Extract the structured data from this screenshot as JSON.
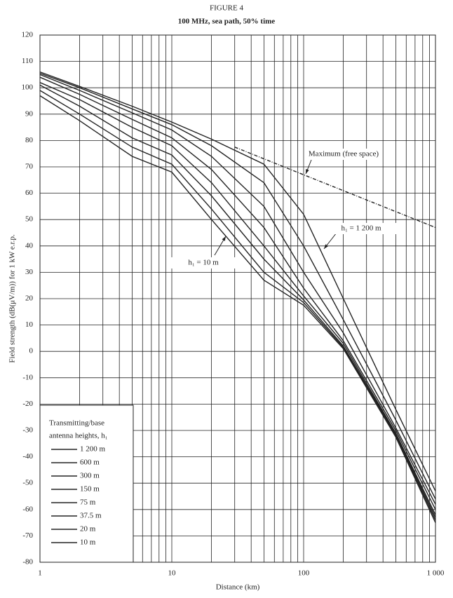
{
  "chart_data": {
    "type": "line",
    "title": "FIGURE 4",
    "subtitle": "100 MHz, sea path, 50% time",
    "x_label": "Distance (km)",
    "y_label": "Field strength (dB(μV/m)) for 1 kW e.r.p.",
    "x_scale": "log",
    "xlim": [
      1,
      1000
    ],
    "xticks": [
      1,
      10,
      100,
      {
        "value": 1000,
        "label": "1 000"
      }
    ],
    "xgrid": [
      2,
      3,
      4,
      5,
      6,
      7,
      8,
      9,
      20,
      30,
      40,
      50,
      60,
      70,
      80,
      90,
      200,
      300,
      400,
      500,
      600,
      700,
      800,
      900
    ],
    "ylim": [
      -80,
      120
    ],
    "yticks": [
      -80,
      -70,
      -60,
      -50,
      -40,
      -30,
      -20,
      -10,
      0,
      10,
      20,
      30,
      40,
      50,
      60,
      70,
      80,
      90,
      100,
      110,
      120
    ],
    "grid": true,
    "legend_title": [
      "Transmitting/base",
      "antenna heights,  h₁"
    ],
    "legend_position": "lower left",
    "x": [
      1,
      2,
      5,
      10,
      20,
      50,
      100,
      200,
      500,
      1000
    ],
    "series": [
      {
        "name": "1 200 m",
        "color": "#222222",
        "values": [
          106,
          100.5,
          93,
          87,
          80.5,
          71,
          52,
          20,
          -22,
          -53
        ]
      },
      {
        "name": "600 m",
        "color": "#222222",
        "values": [
          105.5,
          100,
          92,
          86,
          78,
          64,
          40,
          12,
          -26,
          -56
        ]
      },
      {
        "name": "300 m",
        "color": "#222222",
        "values": [
          105,
          99,
          90.5,
          84,
          74,
          55,
          30,
          7,
          -29,
          -58
        ]
      },
      {
        "name": "150 m",
        "color": "#222222",
        "values": [
          104,
          97.5,
          88,
          81,
          69,
          47,
          24,
          4,
          -30,
          -60
        ]
      },
      {
        "name": "75 m",
        "color": "#222222",
        "values": [
          102,
          95.5,
          85,
          78,
          64,
          40,
          21,
          3,
          -31,
          -62
        ]
      },
      {
        "name": "37.5 m",
        "color": "#222222",
        "values": [
          101,
          93,
          81,
          74.5,
          59,
          35,
          19.5,
          2,
          -31.5,
          -63
        ]
      },
      {
        "name": "20 m",
        "color": "#222222",
        "values": [
          99,
          90,
          77.5,
          71,
          54,
          30,
          18.5,
          1.5,
          -32,
          -64
        ]
      },
      {
        "name": "10 m",
        "color": "#222222",
        "values": [
          97,
          87.5,
          74,
          68,
          50,
          27,
          17.5,
          1,
          -32.5,
          -65
        ]
      }
    ],
    "free_space": {
      "x": [
        30,
        100,
        1000
      ],
      "values": [
        77.5,
        67,
        47
      ],
      "style": "dashed"
    },
    "annotations": [
      "Maximum (free space)",
      "h₁ = 1 200 m",
      "h₁ = 10 m"
    ]
  }
}
